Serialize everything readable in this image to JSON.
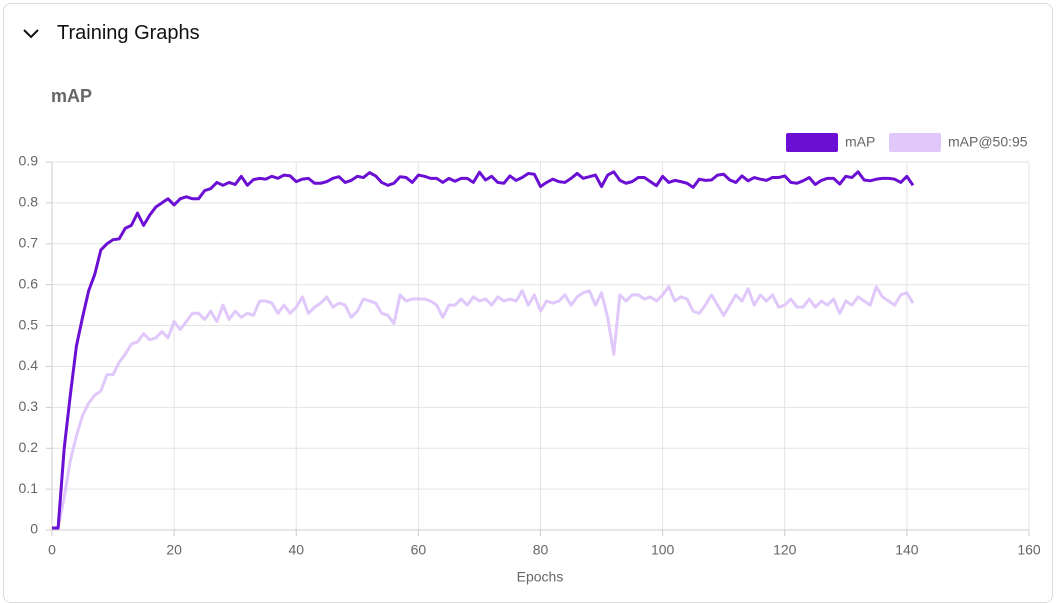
{
  "header": {
    "title": "Training Graphs"
  },
  "chart_data": {
    "type": "line",
    "title": "mAP",
    "x_label": "Epochs",
    "x": [
      0,
      1,
      2,
      3,
      4,
      5,
      6,
      7,
      8,
      9,
      10,
      11,
      12,
      13,
      14,
      15,
      16,
      17,
      18,
      19,
      20,
      21,
      22,
      23,
      24,
      25,
      26,
      27,
      28,
      29,
      30,
      31,
      32,
      33,
      34,
      35,
      36,
      37,
      38,
      39,
      40,
      41,
      42,
      43,
      44,
      45,
      46,
      47,
      48,
      49,
      50,
      51,
      52,
      53,
      54,
      55,
      56,
      57,
      58,
      59,
      60,
      61,
      62,
      63,
      64,
      65,
      66,
      67,
      68,
      69,
      70,
      71,
      72,
      73,
      74,
      75,
      76,
      77,
      78,
      79,
      80,
      81,
      82,
      83,
      84,
      85,
      86,
      87,
      88,
      89,
      90,
      91,
      92,
      93,
      94,
      95,
      96,
      97,
      98,
      99,
      100,
      101,
      102,
      103,
      104,
      105,
      106,
      107,
      108,
      109,
      110,
      111,
      112,
      113,
      114,
      115,
      116,
      117,
      118,
      119,
      120,
      121,
      122,
      123,
      124,
      125,
      126,
      127,
      128,
      129,
      130,
      131,
      132,
      133,
      134,
      135,
      136,
      137,
      138,
      139,
      140,
      141
    ],
    "series": [
      {
        "name": "mAP",
        "color": "#6a0fd3",
        "values": [
          0.005,
          0.005,
          0.2,
          0.33,
          0.45,
          0.52,
          0.585,
          0.625,
          0.685,
          0.7,
          0.71,
          0.712,
          0.738,
          0.745,
          0.775,
          0.745,
          0.77,
          0.79,
          0.8,
          0.81,
          0.795,
          0.81,
          0.815,
          0.81,
          0.81,
          0.83,
          0.835,
          0.85,
          0.843,
          0.85,
          0.845,
          0.865,
          0.843,
          0.857,
          0.86,
          0.858,
          0.865,
          0.86,
          0.868,
          0.866,
          0.852,
          0.858,
          0.86,
          0.848,
          0.848,
          0.852,
          0.86,
          0.864,
          0.85,
          0.855,
          0.865,
          0.862,
          0.874,
          0.866,
          0.85,
          0.843,
          0.848,
          0.864,
          0.862,
          0.85,
          0.868,
          0.865,
          0.86,
          0.86,
          0.85,
          0.86,
          0.853,
          0.86,
          0.86,
          0.85,
          0.875,
          0.856,
          0.865,
          0.85,
          0.848,
          0.866,
          0.855,
          0.862,
          0.872,
          0.87,
          0.84,
          0.85,
          0.858,
          0.852,
          0.85,
          0.86,
          0.872,
          0.86,
          0.864,
          0.868,
          0.84,
          0.868,
          0.876,
          0.855,
          0.848,
          0.852,
          0.862,
          0.862,
          0.852,
          0.842,
          0.865,
          0.85,
          0.855,
          0.852,
          0.848,
          0.838,
          0.858,
          0.855,
          0.856,
          0.868,
          0.87,
          0.856,
          0.85,
          0.866,
          0.854,
          0.862,
          0.858,
          0.855,
          0.862,
          0.862,
          0.866,
          0.85,
          0.848,
          0.854,
          0.862,
          0.845,
          0.855,
          0.86,
          0.86,
          0.846,
          0.865,
          0.862,
          0.876,
          0.856,
          0.854,
          0.858,
          0.86,
          0.86,
          0.858,
          0.85,
          0.865,
          0.843
        ]
      },
      {
        "name": "mAP@50:95",
        "color": "#e0c8fb",
        "values": [
          0.005,
          0.005,
          0.08,
          0.17,
          0.23,
          0.28,
          0.31,
          0.33,
          0.34,
          0.38,
          0.38,
          0.41,
          0.43,
          0.455,
          0.46,
          0.48,
          0.465,
          0.47,
          0.485,
          0.47,
          0.51,
          0.49,
          0.51,
          0.53,
          0.53,
          0.515,
          0.535,
          0.51,
          0.55,
          0.515,
          0.535,
          0.52,
          0.53,
          0.525,
          0.56,
          0.56,
          0.555,
          0.53,
          0.55,
          0.53,
          0.545,
          0.57,
          0.53,
          0.545,
          0.555,
          0.57,
          0.545,
          0.555,
          0.55,
          0.52,
          0.535,
          0.565,
          0.56,
          0.555,
          0.53,
          0.525,
          0.505,
          0.575,
          0.56,
          0.565,
          0.565,
          0.565,
          0.56,
          0.55,
          0.52,
          0.55,
          0.55,
          0.565,
          0.55,
          0.57,
          0.56,
          0.565,
          0.55,
          0.57,
          0.56,
          0.565,
          0.56,
          0.585,
          0.55,
          0.575,
          0.535,
          0.56,
          0.555,
          0.56,
          0.575,
          0.55,
          0.57,
          0.58,
          0.585,
          0.55,
          0.58,
          0.52,
          0.43,
          0.575,
          0.56,
          0.575,
          0.575,
          0.565,
          0.57,
          0.56,
          0.575,
          0.595,
          0.56,
          0.57,
          0.565,
          0.535,
          0.53,
          0.55,
          0.575,
          0.55,
          0.525,
          0.55,
          0.575,
          0.56,
          0.59,
          0.55,
          0.575,
          0.56,
          0.575,
          0.545,
          0.55,
          0.565,
          0.545,
          0.545,
          0.565,
          0.545,
          0.56,
          0.55,
          0.565,
          0.53,
          0.56,
          0.55,
          0.57,
          0.56,
          0.55,
          0.595,
          0.57,
          0.56,
          0.55,
          0.575,
          0.58,
          0.555
        ]
      }
    ],
    "xlim": [
      0,
      160
    ],
    "xticks": [
      0,
      20,
      40,
      60,
      80,
      100,
      120,
      140,
      160
    ],
    "ylim": [
      0,
      0.9
    ],
    "yticks": [
      0,
      0.1,
      0.2,
      0.3,
      0.4,
      0.5,
      0.6,
      0.7,
      0.8,
      0.9
    ],
    "grid": true,
    "legend": "top-right"
  }
}
